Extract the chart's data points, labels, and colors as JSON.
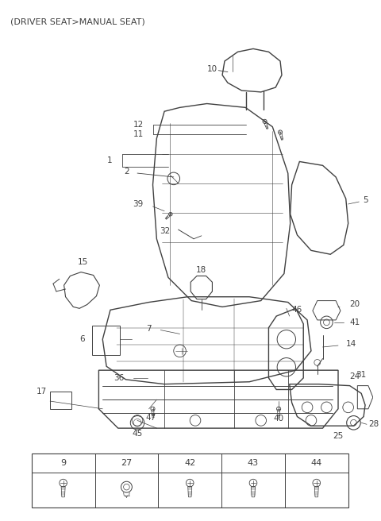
{
  "title": "(DRIVER SEAT>MANUAL SEAT)",
  "bg_color": "#ffffff",
  "line_color": "#404040",
  "lw": 0.8,
  "fig_w": 4.8,
  "fig_h": 6.56,
  "dpi": 100
}
